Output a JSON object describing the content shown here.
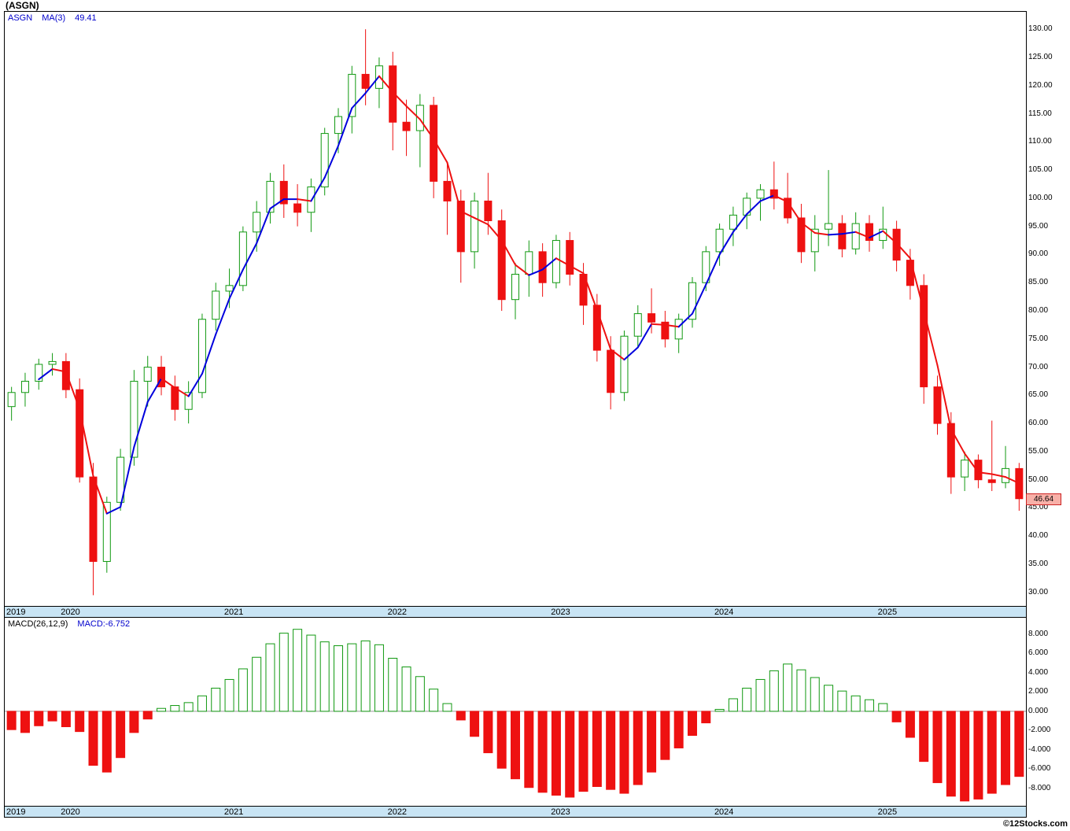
{
  "title": "(ASGN)",
  "watermark": "©12Stocks.com",
  "legend": {
    "symbol": "ASGN",
    "ma_label": "MA(3)",
    "ma_value": "49.41"
  },
  "macd_legend": {
    "label": "MACD(26,12,9)",
    "value_label": "MACD:-6.752"
  },
  "price_marker": {
    "value": "46.64"
  },
  "colors": {
    "up": "#119911",
    "down": "#ee1111",
    "ma_up": "#0000dd",
    "ma_down": "#ee1111",
    "band": "#c8e4f4",
    "legend_blue": "#0000cc",
    "marker_fill": "#f8b0a8",
    "marker_border": "#cc2222",
    "zero_line": "#999999"
  },
  "chart_data": [
    {
      "type": "candlestick",
      "title": "(ASGN) monthly price",
      "overlay": "MA(3)",
      "ylim": [
        27.6,
        133.1
      ],
      "y_ticks": [
        130,
        125,
        120,
        115,
        110,
        105,
        100,
        95,
        90,
        85,
        80,
        75,
        70,
        65,
        60,
        55,
        50,
        45,
        40,
        35,
        30
      ],
      "x_year_marks": [
        {
          "label": "2019",
          "index": 0
        },
        {
          "label": "2020",
          "index": 4
        },
        {
          "label": "2021",
          "index": 16
        },
        {
          "label": "2022",
          "index": 28
        },
        {
          "label": "2023",
          "index": 40
        },
        {
          "label": "2024",
          "index": 52
        },
        {
          "label": "2025",
          "index": 64
        }
      ],
      "last_price": 46.64,
      "candles": [
        [
          "2019-09",
          63.0,
          66.5,
          60.5,
          65.5
        ],
        [
          "2019-10",
          65.5,
          69.0,
          63.0,
          67.5
        ],
        [
          "2019-11",
          67.5,
          71.5,
          66.0,
          70.5
        ],
        [
          "2019-12",
          70.5,
          72.5,
          68.5,
          71.0
        ],
        [
          "2020-01",
          71.0,
          72.5,
          64.5,
          66.0
        ],
        [
          "2020-02",
          66.0,
          68.0,
          49.5,
          50.5
        ],
        [
          "2020-03",
          50.5,
          53.0,
          29.5,
          35.5
        ],
        [
          "2020-04",
          35.5,
          47.0,
          33.5,
          46.0
        ],
        [
          "2020-05",
          46.0,
          55.5,
          44.5,
          54.0
        ],
        [
          "2020-06",
          54.0,
          69.5,
          52.5,
          67.5
        ],
        [
          "2020-07",
          67.5,
          72.0,
          63.0,
          70.0
        ],
        [
          "2020-08",
          70.0,
          72.0,
          65.0,
          66.5
        ],
        [
          "2020-09",
          66.5,
          68.5,
          60.5,
          62.5
        ],
        [
          "2020-10",
          62.5,
          67.5,
          60.0,
          65.5
        ],
        [
          "2020-11",
          65.5,
          79.5,
          64.5,
          78.5
        ],
        [
          "2020-12",
          78.5,
          85.0,
          76.5,
          83.5
        ],
        [
          "2021-01",
          83.5,
          87.5,
          80.5,
          84.5
        ],
        [
          "2021-02",
          84.5,
          95.0,
          83.5,
          94.0
        ],
        [
          "2021-03",
          94.0,
          99.5,
          90.5,
          97.5
        ],
        [
          "2021-04",
          97.5,
          104.5,
          95.5,
          103.0
        ],
        [
          "2021-05",
          103.0,
          106.0,
          96.5,
          99.0
        ],
        [
          "2021-06",
          99.0,
          102.5,
          95.0,
          97.5
        ],
        [
          "2021-07",
          97.5,
          103.5,
          94.0,
          102.0
        ],
        [
          "2021-08",
          102.0,
          112.5,
          100.5,
          111.5
        ],
        [
          "2021-09",
          111.5,
          116.0,
          108.0,
          114.5
        ],
        [
          "2021-10",
          114.5,
          123.5,
          111.5,
          122.0
        ],
        [
          "2021-11",
          122.0,
          130.0,
          116.5,
          119.5
        ],
        [
          "2021-12",
          119.5,
          125.0,
          116.0,
          123.5
        ],
        [
          "2022-01",
          123.5,
          126.0,
          108.5,
          113.5
        ],
        [
          "2022-02",
          113.5,
          117.5,
          107.5,
          112.0
        ],
        [
          "2022-03",
          112.0,
          118.5,
          105.5,
          116.5
        ],
        [
          "2022-04",
          116.5,
          118.0,
          100.0,
          103.0
        ],
        [
          "2022-05",
          103.0,
          106.5,
          93.5,
          99.5
        ],
        [
          "2022-06",
          99.5,
          101.5,
          85.0,
          90.5
        ],
        [
          "2022-07",
          90.5,
          101.0,
          87.5,
          99.5
        ],
        [
          "2022-08",
          99.5,
          104.5,
          93.5,
          96.0
        ],
        [
          "2022-09",
          96.0,
          98.0,
          80.0,
          82.0
        ],
        [
          "2022-10",
          82.0,
          88.5,
          78.5,
          86.5
        ],
        [
          "2022-11",
          86.5,
          92.5,
          82.5,
          90.5
        ],
        [
          "2022-12",
          90.5,
          92.0,
          82.5,
          85.0
        ],
        [
          "2023-01",
          85.0,
          93.5,
          84.0,
          92.5
        ],
        [
          "2023-02",
          92.5,
          94.0,
          84.5,
          86.5
        ],
        [
          "2023-03",
          86.5,
          88.5,
          77.5,
          81.0
        ],
        [
          "2023-04",
          81.0,
          83.0,
          71.0,
          73.0
        ],
        [
          "2023-05",
          73.0,
          75.5,
          62.5,
          65.5
        ],
        [
          "2023-06",
          65.5,
          76.5,
          64.0,
          75.5
        ],
        [
          "2023-07",
          75.5,
          81.0,
          73.5,
          79.5
        ],
        [
          "2023-08",
          79.5,
          84.0,
          76.0,
          78.0
        ],
        [
          "2023-09",
          78.0,
          80.0,
          73.5,
          75.0
        ],
        [
          "2023-10",
          75.0,
          79.5,
          72.5,
          78.5
        ],
        [
          "2023-11",
          78.5,
          86.0,
          77.0,
          85.0
        ],
        [
          "2023-12",
          85.0,
          91.5,
          83.5,
          90.5
        ],
        [
          "2024-01",
          90.5,
          95.5,
          88.0,
          94.5
        ],
        [
          "2024-02",
          94.5,
          98.5,
          91.5,
          97.0
        ],
        [
          "2024-03",
          97.0,
          101.0,
          94.5,
          100.0
        ],
        [
          "2024-04",
          100.0,
          102.5,
          96.0,
          101.5
        ],
        [
          "2024-05",
          101.5,
          106.5,
          98.0,
          100.0
        ],
        [
          "2024-06",
          100.0,
          104.5,
          95.5,
          96.5
        ],
        [
          "2024-07",
          96.5,
          99.0,
          88.5,
          90.5
        ],
        [
          "2024-08",
          90.5,
          97.0,
          87.0,
          94.5
        ],
        [
          "2024-09",
          94.5,
          105.0,
          91.5,
          95.5
        ],
        [
          "2024-10",
          95.5,
          97.0,
          89.5,
          91.0
        ],
        [
          "2024-11",
          91.0,
          97.5,
          90.0,
          95.5
        ],
        [
          "2024-12",
          95.5,
          97.0,
          90.5,
          92.5
        ],
        [
          "2025-01",
          92.5,
          98.5,
          91.0,
          94.5
        ],
        [
          "2025-02",
          94.5,
          96.0,
          87.0,
          89.0
        ],
        [
          "2025-03",
          89.0,
          91.0,
          82.0,
          84.5
        ],
        [
          "2025-04",
          84.5,
          86.5,
          63.5,
          66.5
        ],
        [
          "2025-05",
          66.5,
          68.5,
          58.0,
          60.0
        ],
        [
          "2025-06",
          60.0,
          62.0,
          47.5,
          50.5
        ],
        [
          "2025-07",
          50.5,
          55.0,
          48.0,
          53.5
        ],
        [
          "2025-08",
          53.5,
          54.5,
          48.5,
          50.0
        ],
        [
          "2025-09",
          50.0,
          60.5,
          48.0,
          49.5
        ],
        [
          "2025-10",
          49.5,
          56.0,
          48.5,
          52.0
        ],
        [
          "2025-11",
          52.0,
          53.0,
          44.5,
          46.64
        ]
      ]
    },
    {
      "type": "bar",
      "title": "MACD(26,12,9) histogram",
      "ylim": [
        -9.8,
        9.7
      ],
      "y_ticks": [
        8,
        6,
        4,
        2,
        0,
        -2,
        -4,
        -6,
        -8
      ],
      "values": [
        -1.9,
        -2.2,
        -1.5,
        -1.0,
        -1.6,
        -2.1,
        -5.6,
        -6.3,
        -4.8,
        -2.2,
        -0.8,
        0.3,
        0.6,
        0.9,
        1.6,
        2.4,
        3.3,
        4.4,
        5.6,
        7.0,
        8.1,
        8.5,
        7.9,
        7.2,
        6.8,
        7.0,
        7.3,
        6.9,
        5.5,
        4.6,
        3.6,
        2.3,
        0.8,
        -0.9,
        -2.6,
        -4.3,
        -5.9,
        -7.0,
        -7.9,
        -8.4,
        -8.7,
        -8.9,
        -8.3,
        -7.8,
        -8.1,
        -8.5,
        -7.6,
        -6.3,
        -5.0,
        -3.8,
        -2.5,
        -1.2,
        0.2,
        1.3,
        2.4,
        3.3,
        4.2,
        4.9,
        4.3,
        3.5,
        2.7,
        2.1,
        1.6,
        1.2,
        0.8,
        -1.1,
        -2.7,
        -5.2,
        -7.4,
        -8.8,
        -9.3,
        -9.1,
        -8.5,
        -7.6,
        -6.752
      ]
    }
  ]
}
